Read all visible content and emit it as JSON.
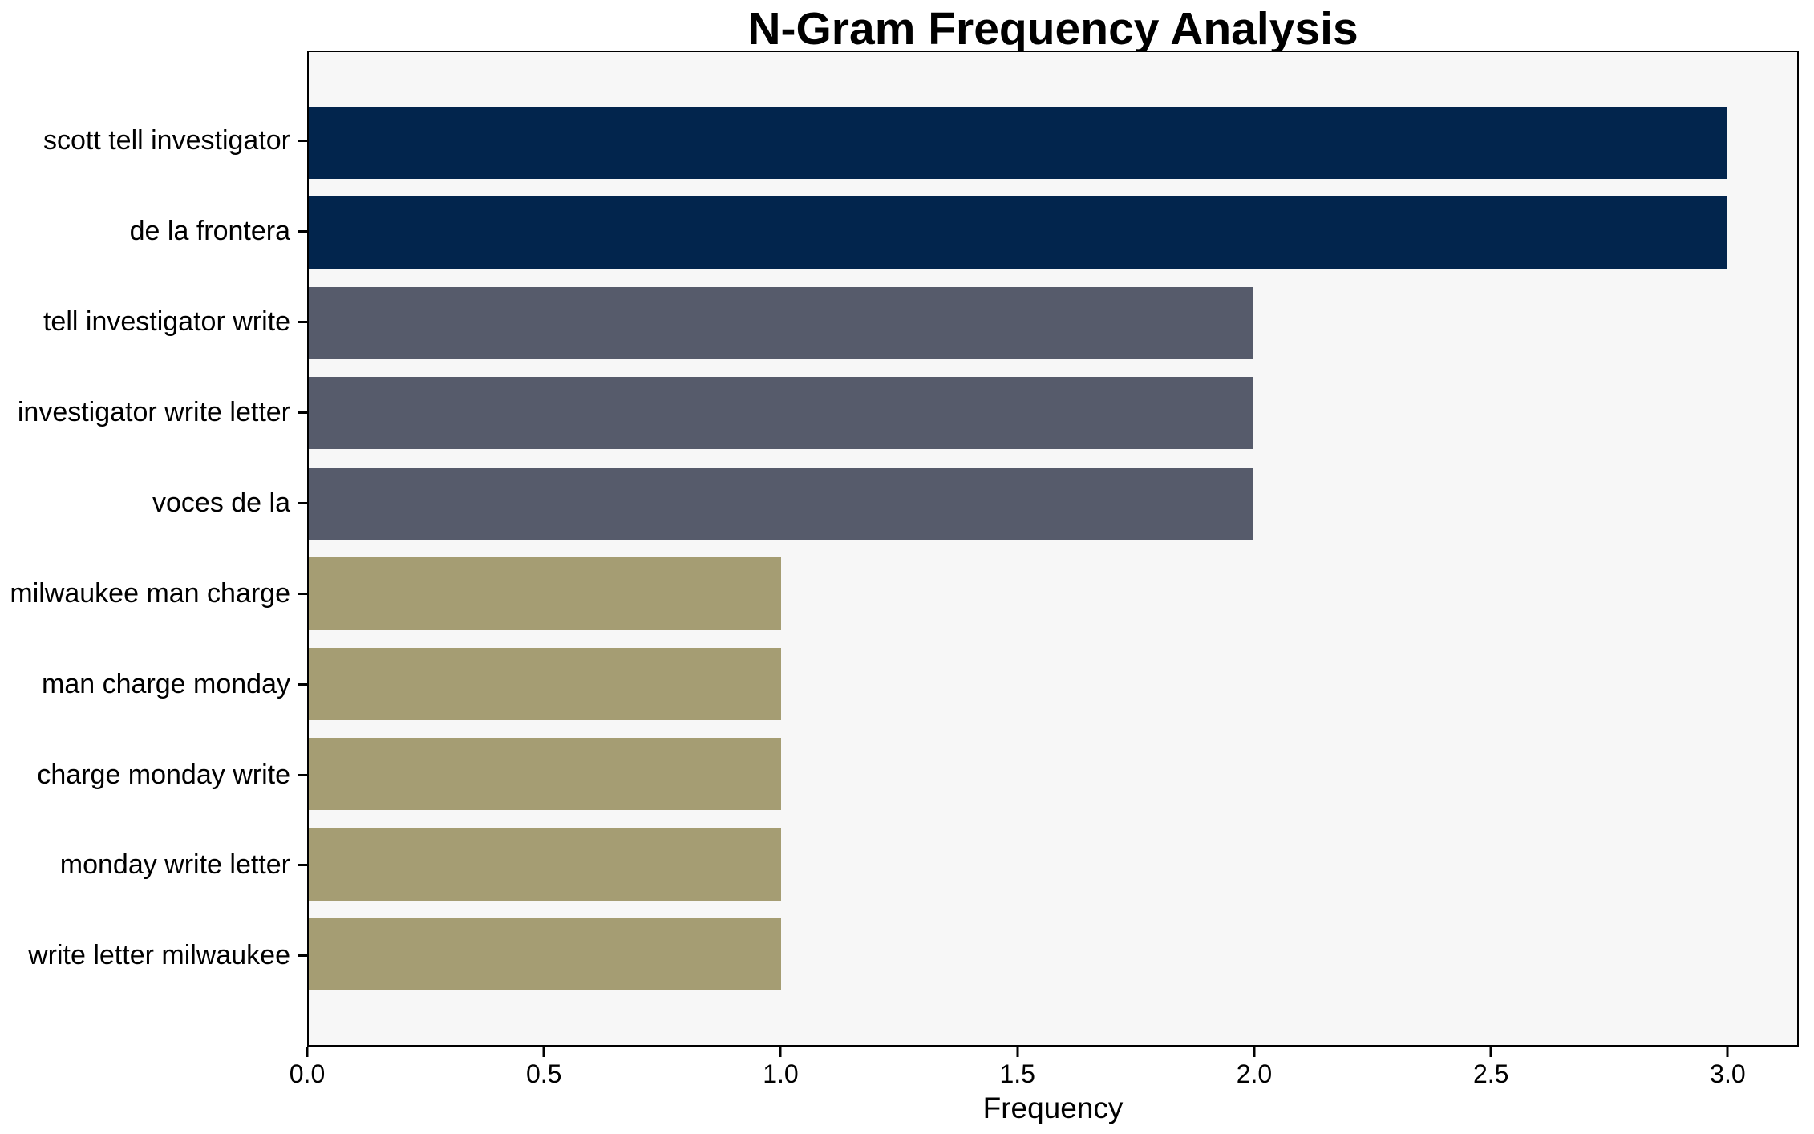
{
  "chart_data": {
    "type": "bar",
    "orientation": "horizontal",
    "title": "N-Gram Frequency Analysis",
    "xlabel": "Frequency",
    "ylabel": "",
    "categories": [
      "scott tell investigator",
      "de la frontera",
      "tell investigator write",
      "investigator write letter",
      "voces de la",
      "milwaukee man charge",
      "man charge monday",
      "charge monday write",
      "monday write letter",
      "write letter milwaukee"
    ],
    "values": [
      3,
      3,
      2,
      2,
      2,
      1,
      1,
      1,
      1,
      1
    ],
    "bar_colors": [
      "#02254d",
      "#02254d",
      "#565b6b",
      "#565b6b",
      "#565b6b",
      "#a59d73",
      "#a59d73",
      "#a59d73",
      "#a59d73",
      "#a59d73"
    ],
    "xlim": [
      0,
      3.15
    ],
    "xticks": [
      0,
      0.5,
      1,
      1.5,
      2,
      2.5,
      3
    ],
    "xtick_labels": [
      "0.0",
      "0.5",
      "1.0",
      "1.5",
      "2.0",
      "2.5",
      "3.0"
    ],
    "bar_height_fraction": 0.8,
    "grid": false,
    "legend": false,
    "plot_background": "#f7f7f7",
    "figure_background": "#ffffff",
    "spine_color": "#000000",
    "text_color": "#000000"
  }
}
